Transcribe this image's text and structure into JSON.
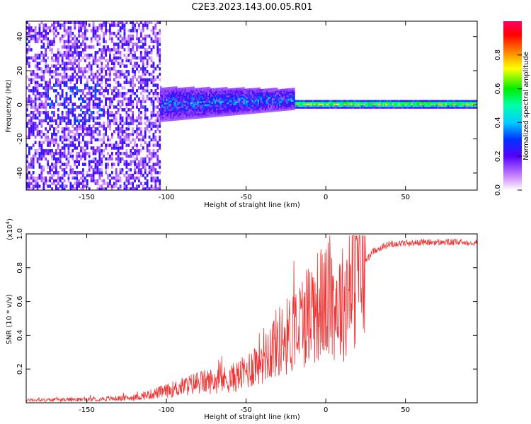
{
  "title": "C2E3.2023.143.00.05.R01",
  "chart_data": [
    {
      "type": "heatmap",
      "title": "C2E3.2023.143.00.05.R01",
      "xlabel": "Height of straight line (km)",
      "ylabel": "Frequency (Hz)",
      "xlim": [
        -188,
        95
      ],
      "ylim": [
        -50,
        49
      ],
      "x_ticks": [
        "-150",
        "-100",
        "-50",
        "0",
        "50"
      ],
      "y_ticks": [
        "-40",
        "-20",
        "0",
        "20",
        "40"
      ],
      "colorbar": {
        "label": "Normalized spectral amplitude",
        "range": [
          0,
          1
        ],
        "ticks": [
          "0.0",
          "0.2",
          "0.4",
          "0.6",
          "0.8"
        ],
        "colormap": "rainbow (white-violet-blue-cyan-green-yellow-red-magenta)"
      },
      "features": [
        {
          "x_range": [
            -188,
            -104
          ],
          "freq_range": [
            -50,
            49
          ],
          "amplitude": "low (0.1-0.3), broad scatter"
        },
        {
          "x_range": [
            -104,
            -20
          ],
          "freq_center": [
            0,
            3
          ],
          "freq_halfwidth": [
            10,
            6
          ],
          "amplitude": "0.2-0.5"
        },
        {
          "x_range": [
            -20,
            95
          ],
          "freq_center": 0,
          "freq_halfwidth": 2,
          "amplitude": "0.5-0.9"
        }
      ],
      "grid": false
    },
    {
      "type": "line",
      "xlabel": "Height of straight line (km)",
      "ylabel": "SNR (10 * v/v)",
      "yscale_label": "(x10",
      "yscale_exp": "4",
      "xlim": [
        -188,
        95
      ],
      "ylim": [
        0,
        1.0
      ],
      "x_ticks": [
        "-150",
        "-100",
        "-50",
        "0",
        "50"
      ],
      "y_ticks": [
        "0.2",
        "0.4",
        "0.6",
        "0.8",
        "1.0"
      ],
      "series_color": "#ee3333",
      "envelope_points": [
        {
          "x": -188,
          "y": 0.015
        },
        {
          "x": -150,
          "y": 0.02
        },
        {
          "x": -120,
          "y": 0.03
        },
        {
          "x": -100,
          "y": 0.07
        },
        {
          "x": -80,
          "y": 0.12
        },
        {
          "x": -60,
          "y": 0.14
        },
        {
          "x": -50,
          "y": 0.18
        },
        {
          "x": -40,
          "y": 0.28
        },
        {
          "x": -30,
          "y": 0.36
        },
        {
          "x": -20,
          "y": 0.42
        },
        {
          "x": -10,
          "y": 0.55
        },
        {
          "x": 0,
          "y": 0.6
        },
        {
          "x": 10,
          "y": 0.58
        },
        {
          "x": 20,
          "y": 0.78
        },
        {
          "x": 30,
          "y": 0.9
        },
        {
          "x": 40,
          "y": 0.94
        },
        {
          "x": 60,
          "y": 0.95
        },
        {
          "x": 80,
          "y": 0.95
        },
        {
          "x": 95,
          "y": 0.95
        }
      ],
      "grid": false
    }
  ]
}
